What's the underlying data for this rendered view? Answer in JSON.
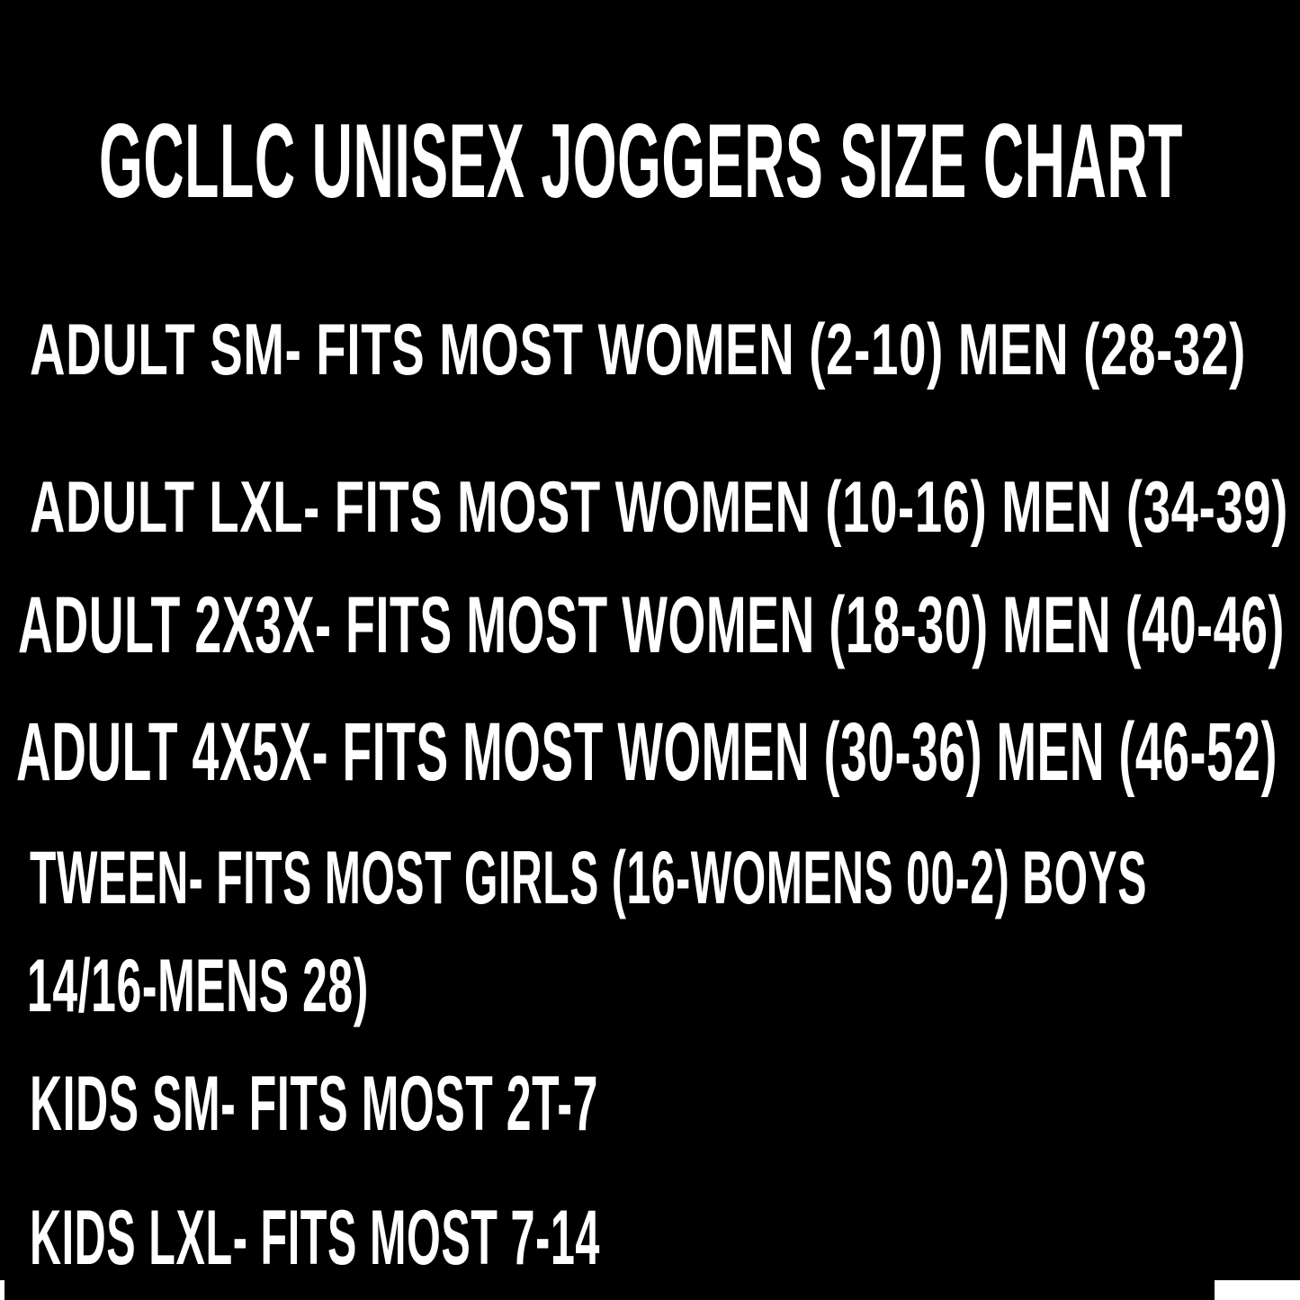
{
  "title": "GCLLC UNISEX JOGGERS SIZE CHART",
  "sizes": [
    {
      "text": "ADULT SM- FITS MOST WOMEN (2-10) MEN (28-32)"
    },
    {
      "text": "ADULT LXL- FITS MOST WOMEN (10-16) MEN (34-39)"
    },
    {
      "text": "ADULT 2X3X- FITS MOST WOMEN (18-30) MEN (40-46)"
    },
    {
      "text": "ADULT 4X5X- FITS MOST WOMEN (30-36) MEN (46-52)"
    },
    {
      "text": "TWEEN- FITS MOST GIRLS (16-WOMENS 00-2) BOYS",
      "continued": "14/16-MENS 28)"
    },
    {
      "text": "KIDS SM- FITS MOST 2T-7"
    },
    {
      "text": "KIDS LXL- FITS MOST 7-14"
    }
  ],
  "colors": {
    "background": "#000000",
    "text": "#ffffff"
  }
}
